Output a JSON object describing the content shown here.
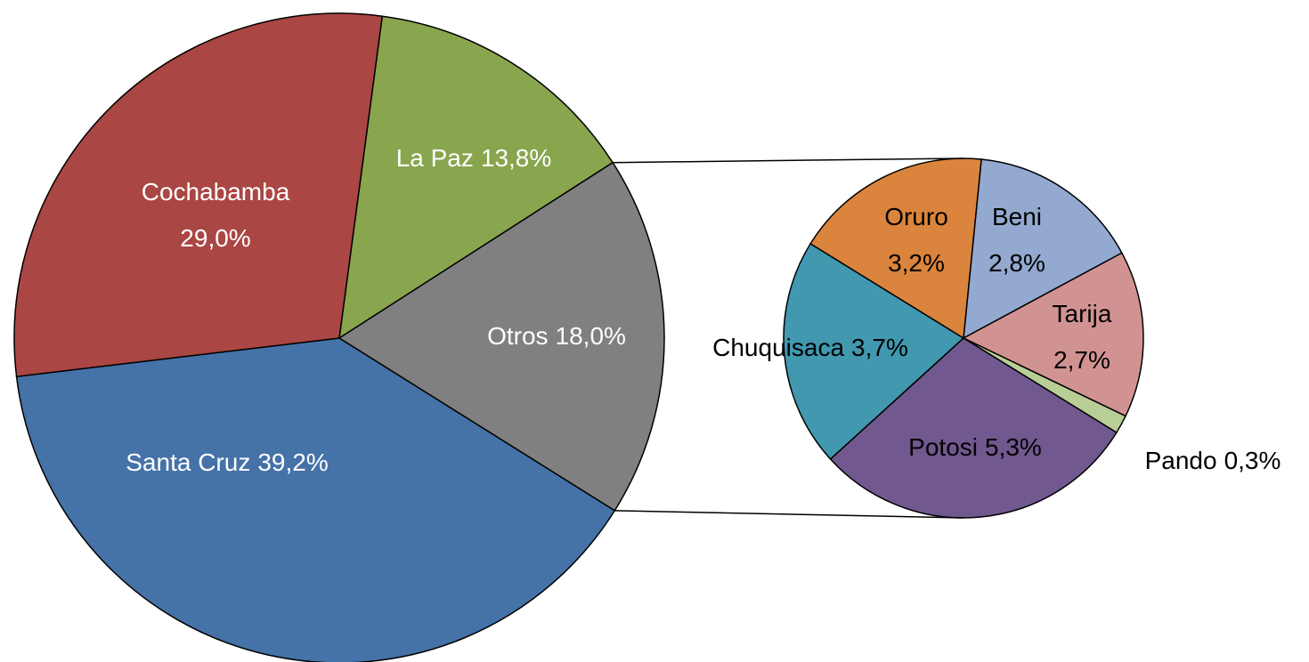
{
  "chart_data": [
    {
      "type": "pie",
      "categories": [
        "La Paz",
        "Otros",
        "Santa Cruz",
        "Cochabamba"
      ],
      "values": [
        13.8,
        18.0,
        39.2,
        29.0
      ],
      "value_labels": [
        "13,8%",
        "18,0%",
        "39,2%",
        "29,0%"
      ],
      "colors": [
        "#89a54e",
        "#808080",
        "#4572a7",
        "#aa4643"
      ]
    },
    {
      "type": "pie",
      "categories": [
        "Beni",
        "Tarija",
        "Pando",
        "Potosi",
        "Chuquisaca",
        "Oruro"
      ],
      "values": [
        2.8,
        2.7,
        0.3,
        5.3,
        3.7,
        3.2
      ],
      "value_labels": [
        "2,8%",
        "2,7%",
        "0,3%",
        "5,3%",
        "3,7%",
        "3,2%"
      ],
      "colors": [
        "#93a9cf",
        "#d19392",
        "#b9cd96",
        "#71588f",
        "#4198af",
        "#db843d"
      ]
    }
  ]
}
